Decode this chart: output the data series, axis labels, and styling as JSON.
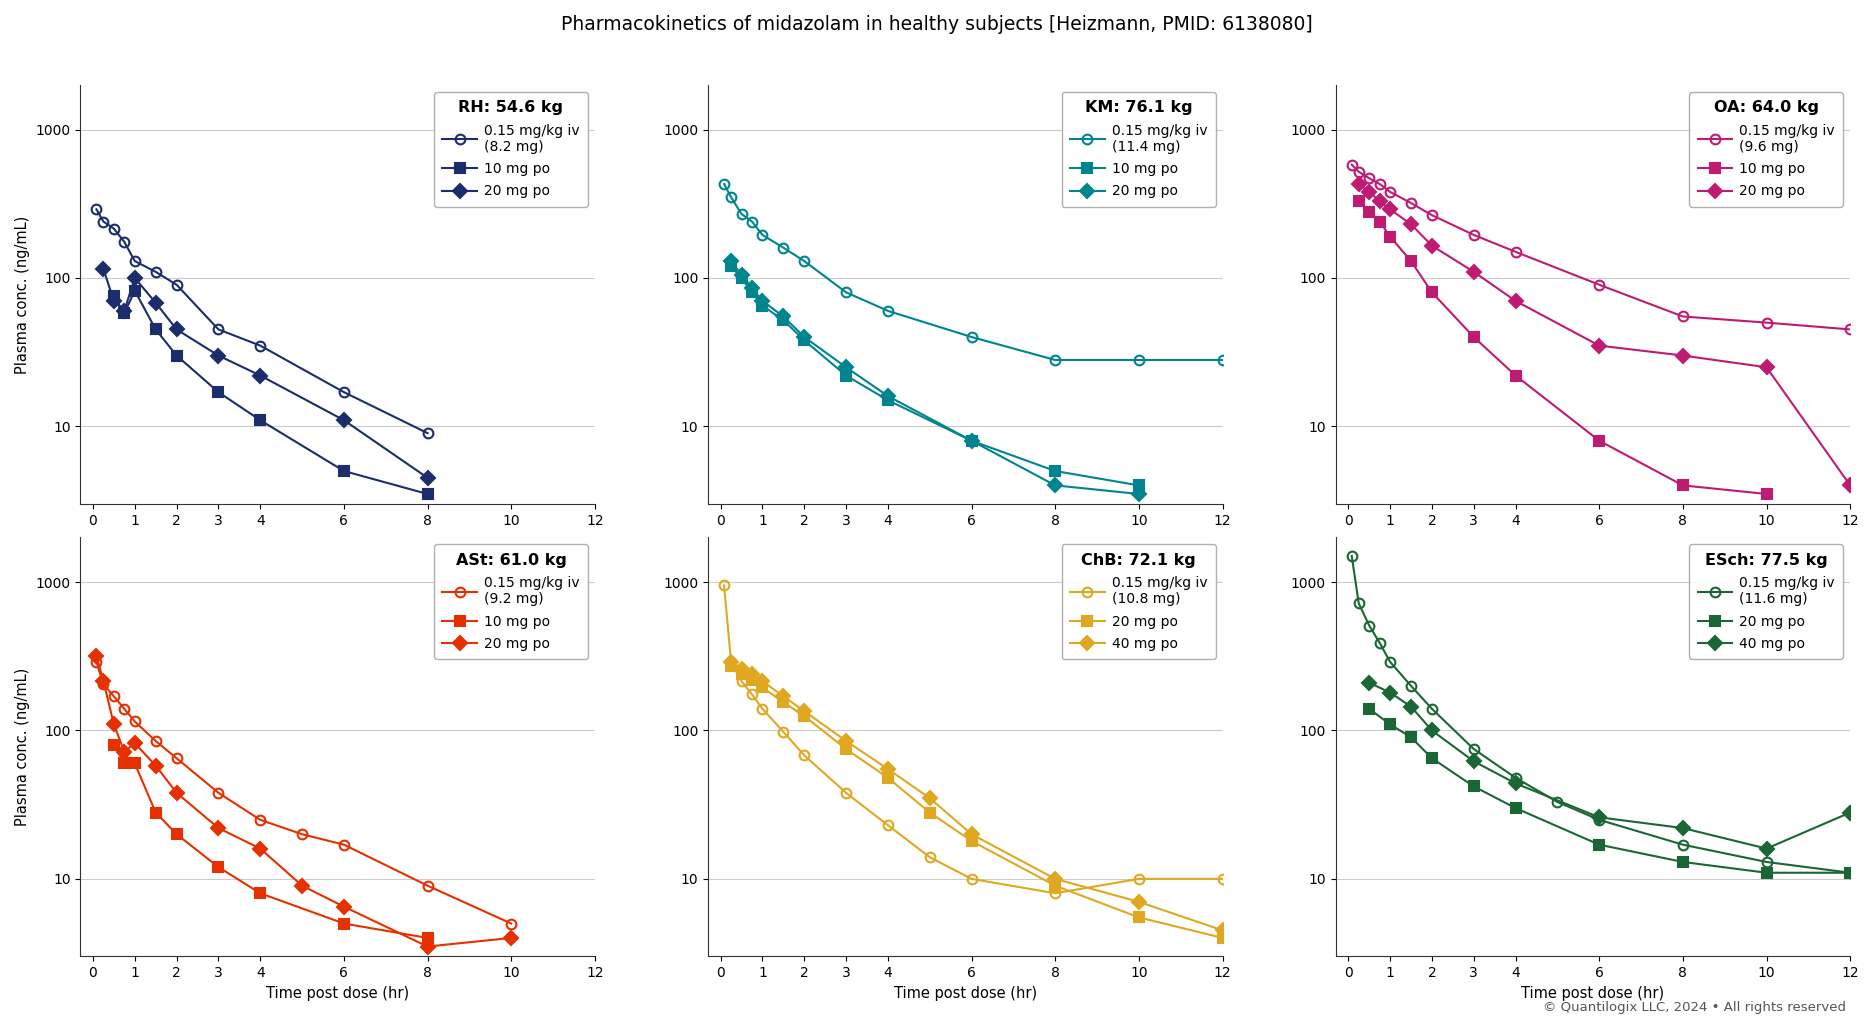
{
  "title": "Pharmacokinetics of midazolam in healthy subjects [Heizmann, PMID: 6138080]",
  "copyright": "© Quantilogix LLC, 2024 • All rights reserved",
  "ylabel": "Plasma conc. (ng/mL)",
  "xlabel": "Time post dose (hr)",
  "panels": [
    {
      "subject": "RH: 54.6 kg",
      "color": "#1b2d6b",
      "xlim": [
        -0.3,
        12
      ],
      "xticks": [
        0,
        1,
        2,
        3,
        4,
        6,
        8,
        10,
        12
      ],
      "ylim": [
        3,
        2000
      ],
      "series": [
        {
          "label": "0.15 mg/kg iv\n(8.2 mg)",
          "marker": "o",
          "time": [
            0.083,
            0.25,
            0.5,
            0.75,
            1.0,
            1.5,
            2.0,
            3.0,
            4.0,
            6.0,
            8.0
          ],
          "conc": [
            290,
            240,
            215,
            175,
            130,
            110,
            90,
            45,
            35,
            17,
            9
          ]
        },
        {
          "label": "10 mg po",
          "marker": "s",
          "time": [
            0.5,
            0.75,
            1.0,
            1.5,
            2.0,
            3.0,
            4.0,
            6.0,
            8.0
          ],
          "conc": [
            75,
            58,
            82,
            45,
            30,
            17,
            11,
            5,
            3.5
          ]
        },
        {
          "label": "20 mg po",
          "marker": "D",
          "time": [
            0.25,
            0.5,
            0.75,
            1.0,
            1.5,
            2.0,
            3.0,
            4.0,
            6.0,
            8.0
          ],
          "conc": [
            115,
            70,
            60,
            100,
            68,
            45,
            30,
            22,
            11,
            4.5
          ]
        }
      ]
    },
    {
      "subject": "KM: 76.1 kg",
      "color": "#00848e",
      "xlim": [
        -0.3,
        12
      ],
      "xticks": [
        0,
        1,
        2,
        3,
        4,
        6,
        8,
        10,
        12
      ],
      "ylim": [
        3,
        2000
      ],
      "series": [
        {
          "label": "0.15 mg/kg iv\n(11.4 mg)",
          "marker": "o",
          "time": [
            0.083,
            0.25,
            0.5,
            0.75,
            1.0,
            1.5,
            2.0,
            3.0,
            4.0,
            6.0,
            8.0,
            10.0,
            12.0
          ],
          "conc": [
            430,
            350,
            270,
            240,
            195,
            160,
            130,
            80,
            60,
            40,
            28,
            28,
            28
          ]
        },
        {
          "label": "10 mg po",
          "marker": "s",
          "time": [
            0.25,
            0.5,
            0.75,
            1.0,
            1.5,
            2.0,
            3.0,
            4.0,
            6.0,
            8.0,
            10.0
          ],
          "conc": [
            120,
            100,
            80,
            65,
            52,
            38,
            22,
            15,
            8,
            5,
            4
          ]
        },
        {
          "label": "20 mg po",
          "marker": "D",
          "time": [
            0.25,
            0.5,
            0.75,
            1.0,
            1.5,
            2.0,
            3.0,
            4.0,
            6.0,
            8.0,
            10.0
          ],
          "conc": [
            130,
            105,
            85,
            70,
            55,
            40,
            25,
            16,
            8,
            4,
            3.5
          ]
        }
      ]
    },
    {
      "subject": "OA: 64.0 kg",
      "color": "#c01b72",
      "xlim": [
        -0.3,
        12
      ],
      "xticks": [
        0,
        1,
        2,
        3,
        4,
        6,
        8,
        10,
        12
      ],
      "ylim": [
        3,
        2000
      ],
      "series": [
        {
          "label": "0.15 mg/kg iv\n(9.6 mg)",
          "marker": "o",
          "time": [
            0.083,
            0.25,
            0.5,
            0.75,
            1.0,
            1.5,
            2.0,
            3.0,
            4.0,
            6.0,
            8.0,
            10.0,
            12.0
          ],
          "conc": [
            580,
            520,
            470,
            430,
            380,
            320,
            265,
            195,
            150,
            90,
            55,
            50,
            45
          ]
        },
        {
          "label": "10 mg po",
          "marker": "s",
          "time": [
            0.25,
            0.5,
            0.75,
            1.0,
            1.5,
            2.0,
            3.0,
            4.0,
            6.0,
            8.0,
            10.0
          ],
          "conc": [
            330,
            280,
            240,
            190,
            130,
            80,
            40,
            22,
            8,
            4,
            3.5
          ]
        },
        {
          "label": "20 mg po",
          "marker": "D",
          "time": [
            0.25,
            0.5,
            0.75,
            1.0,
            1.5,
            2.0,
            3.0,
            4.0,
            6.0,
            8.0,
            10.0,
            12.0
          ],
          "conc": [
            430,
            380,
            330,
            290,
            230,
            165,
            110,
            70,
            35,
            30,
            25,
            4
          ]
        }
      ]
    },
    {
      "subject": "ASt: 61.0 kg",
      "color": "#e53000",
      "xlim": [
        -0.3,
        12
      ],
      "xticks": [
        0,
        1,
        2,
        3,
        4,
        6,
        8,
        10,
        12
      ],
      "ylim": [
        3,
        2000
      ],
      "series": [
        {
          "label": "0.15 mg/kg iv\n(9.2 mg)",
          "marker": "o",
          "time": [
            0.083,
            0.25,
            0.5,
            0.75,
            1.0,
            1.5,
            2.0,
            3.0,
            4.0,
            5.0,
            6.0,
            8.0,
            10.0
          ],
          "conc": [
            290,
            205,
            170,
            140,
            115,
            85,
            65,
            38,
            25,
            20,
            17,
            9,
            5
          ]
        },
        {
          "label": "10 mg po",
          "marker": "s",
          "time": [
            0.5,
            0.75,
            1.0,
            1.5,
            2.0,
            3.0,
            4.0,
            6.0,
            8.0
          ],
          "conc": [
            80,
            60,
            60,
            28,
            20,
            12,
            8,
            5,
            4
          ]
        },
        {
          "label": "20 mg po",
          "marker": "D",
          "time": [
            0.083,
            0.25,
            0.5,
            0.75,
            1.0,
            1.5,
            2.0,
            3.0,
            4.0,
            5.0,
            6.0,
            8.0,
            10.0
          ],
          "conc": [
            320,
            215,
            110,
            72,
            82,
            58,
            38,
            22,
            16,
            9,
            6.5,
            3.5,
            4
          ]
        }
      ]
    },
    {
      "subject": "ChB: 72.1 kg",
      "color": "#e0a820",
      "xlim": [
        -0.3,
        12
      ],
      "xticks": [
        0,
        1,
        2,
        3,
        4,
        6,
        8,
        10,
        12
      ],
      "ylim": [
        3,
        2000
      ],
      "series": [
        {
          "label": "0.15 mg/kg iv\n(10.8 mg)",
          "marker": "o",
          "time": [
            0.083,
            0.25,
            0.5,
            0.75,
            1.0,
            1.5,
            2.0,
            3.0,
            4.0,
            5.0,
            6.0,
            8.0,
            10.0,
            12.0
          ],
          "conc": [
            950,
            290,
            215,
            175,
            140,
            98,
            68,
            38,
            23,
            14,
            10,
            8,
            10,
            10
          ]
        },
        {
          "label": "20 mg po",
          "marker": "s",
          "time": [
            0.25,
            0.5,
            0.75,
            1.0,
            1.5,
            2.0,
            3.0,
            4.0,
            5.0,
            6.0,
            8.0,
            10.0,
            12.0
          ],
          "conc": [
            270,
            240,
            220,
            195,
            155,
            125,
            75,
            48,
            28,
            18,
            9,
            5.5,
            4
          ]
        },
        {
          "label": "40 mg po",
          "marker": "D",
          "time": [
            0.25,
            0.5,
            0.75,
            1.0,
            1.5,
            2.0,
            3.0,
            4.0,
            5.0,
            6.0,
            8.0,
            10.0,
            12.0
          ],
          "conc": [
            290,
            260,
            240,
            215,
            170,
            135,
            85,
            55,
            35,
            20,
            10,
            7,
            4.5
          ]
        }
      ]
    },
    {
      "subject": "ESch: 77.5 kg",
      "color": "#1a6635",
      "xlim": [
        -0.3,
        12
      ],
      "xticks": [
        0,
        1,
        2,
        3,
        4,
        6,
        8,
        10,
        12
      ],
      "ylim": [
        3,
        2000
      ],
      "series": [
        {
          "label": "0.15 mg/kg iv\n(11.6 mg)",
          "marker": "o",
          "time": [
            0.083,
            0.25,
            0.5,
            0.75,
            1.0,
            1.5,
            2.0,
            3.0,
            4.0,
            5.0,
            6.0,
            8.0,
            10.0,
            12.0
          ],
          "conc": [
            1500,
            720,
            510,
            390,
            290,
            200,
            140,
            75,
            48,
            33,
            25,
            17,
            13,
            11
          ]
        },
        {
          "label": "20 mg po",
          "marker": "s",
          "time": [
            0.5,
            1.0,
            1.5,
            2.0,
            3.0,
            4.0,
            6.0,
            8.0,
            10.0,
            12.0
          ],
          "conc": [
            140,
            110,
            90,
            65,
            42,
            30,
            17,
            13,
            11,
            11
          ]
        },
        {
          "label": "40 mg po",
          "marker": "D",
          "time": [
            0.5,
            1.0,
            1.5,
            2.0,
            3.0,
            4.0,
            6.0,
            8.0,
            10.0,
            12.0
          ],
          "conc": [
            210,
            180,
            145,
            100,
            62,
            44,
            26,
            22,
            16,
            28
          ]
        }
      ]
    }
  ]
}
